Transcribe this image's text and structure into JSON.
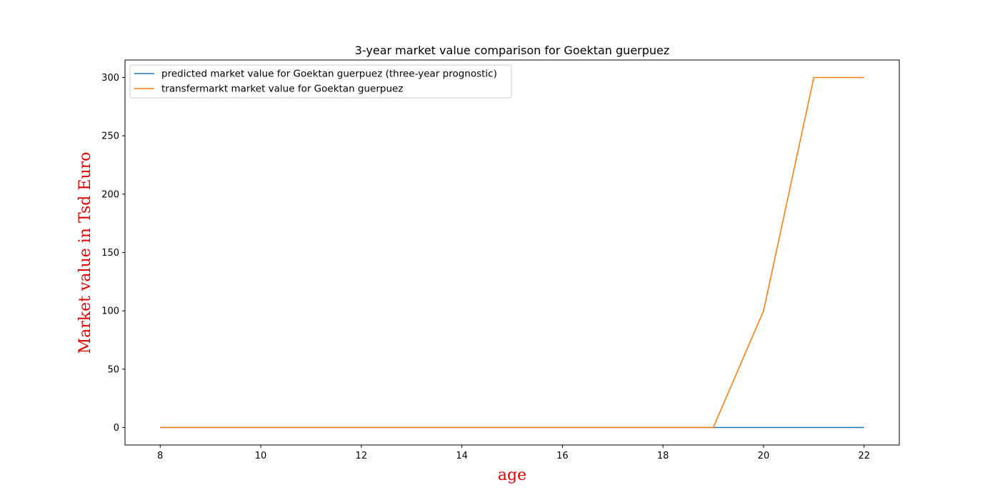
{
  "chart_data": {
    "type": "line",
    "title": "3-year market value comparison for Goektan guerpuez",
    "xlabel": "age",
    "ylabel": "Market value in Tsd Euro",
    "axis_label_color": "#e00000",
    "x": [
      8,
      9,
      10,
      11,
      12,
      13,
      14,
      15,
      16,
      17,
      18,
      19,
      20,
      21,
      22
    ],
    "xlim": [
      7.3,
      22.7
    ],
    "ylim": [
      -15,
      315
    ],
    "xticks": [
      8,
      10,
      12,
      14,
      16,
      18,
      20,
      22
    ],
    "yticks": [
      0,
      50,
      100,
      150,
      200,
      250,
      300
    ],
    "grid": false,
    "legend_position": "top-left",
    "series": [
      {
        "name": "predicted market value for Goektan guerpuez (three-year prognostic)",
        "color": "#1f77b4",
        "values": [
          0,
          0,
          0,
          0,
          0,
          0,
          0,
          0,
          0,
          0,
          0,
          0,
          0,
          0,
          0
        ]
      },
      {
        "name": "transfermarkt market value for Goektan guerpuez",
        "color": "#ff7f0e",
        "values": [
          0,
          0,
          0,
          0,
          0,
          0,
          0,
          0,
          0,
          0,
          0,
          0,
          100,
          300,
          300
        ]
      }
    ]
  }
}
